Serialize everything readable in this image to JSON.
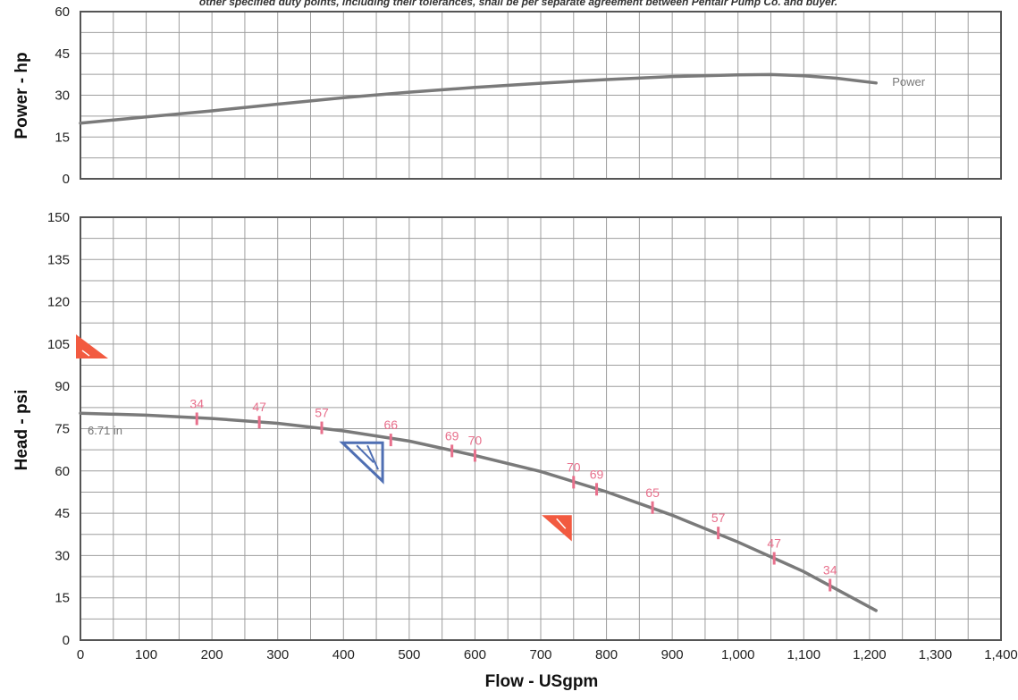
{
  "header_note": "other specified duty points, including their tolerances, shall be per separate agreement between Pentair Pump Co. and buyer.",
  "chart_data": [
    {
      "type": "line",
      "xlabel": "",
      "ylabel": "Power - hp",
      "xlim": [
        0,
        1400
      ],
      "ylim": [
        0,
        60
      ],
      "yticks": [
        0,
        15,
        30,
        45,
        60
      ],
      "grid": true,
      "series": [
        {
          "name": "Power",
          "color": "#7a7a7a",
          "points": [
            [
              0,
              20
            ],
            [
              100,
              22.2
            ],
            [
              200,
              24.4
            ],
            [
              300,
              26.8
            ],
            [
              400,
              29.1
            ],
            [
              500,
              31.1
            ],
            [
              600,
              32.8
            ],
            [
              700,
              34.3
            ],
            [
              800,
              35.6
            ],
            [
              900,
              36.7
            ],
            [
              1000,
              37.3
            ],
            [
              1050,
              37.4
            ],
            [
              1100,
              37.0
            ],
            [
              1150,
              36.1
            ],
            [
              1210,
              34.4
            ]
          ]
        }
      ]
    },
    {
      "type": "line",
      "xlabel": "Flow - USgpm",
      "ylabel": "Head - psi",
      "xlim": [
        0,
        1400
      ],
      "ylim": [
        0,
        150
      ],
      "yticks": [
        0,
        15,
        30,
        45,
        60,
        75,
        90,
        105,
        120,
        135,
        150
      ],
      "xticks": [
        "0",
        "100",
        "200",
        "300",
        "400",
        "500",
        "600",
        "700",
        "800",
        "900",
        "1,000",
        "1,100",
        "1,200",
        "1,300",
        "1,400"
      ],
      "grid": true,
      "series": [
        {
          "name": "6.71 in",
          "color": "#7a7a7a",
          "points": [
            [
              0,
              80.5
            ],
            [
              100,
              79.8
            ],
            [
              200,
              78.6
            ],
            [
              300,
              76.9
            ],
            [
              400,
              74.2
            ],
            [
              500,
              70.6
            ],
            [
              600,
              65.5
            ],
            [
              700,
              59.8
            ],
            [
              800,
              52.6
            ],
            [
              900,
              44.3
            ],
            [
              1000,
              34.8
            ],
            [
              1100,
              24.3
            ],
            [
              1210,
              10.5
            ]
          ]
        }
      ],
      "efficiency_markers": [
        {
          "x": 177,
          "y": 78.5,
          "label": "34"
        },
        {
          "x": 272,
          "y": 77.3,
          "label": "47"
        },
        {
          "x": 367,
          "y": 75.3,
          "label": "57"
        },
        {
          "x": 472,
          "y": 71.0,
          "label": "66"
        },
        {
          "x": 565,
          "y": 67.1,
          "label": "69"
        },
        {
          "x": 600,
          "y": 65.5,
          "label": "70"
        },
        {
          "x": 750,
          "y": 56.0,
          "label": "70"
        },
        {
          "x": 785,
          "y": 53.5,
          "label": "69"
        },
        {
          "x": 870,
          "y": 47.0,
          "label": "65"
        },
        {
          "x": 970,
          "y": 38.0,
          "label": "57"
        },
        {
          "x": 1055,
          "y": 29.0,
          "label": "47"
        },
        {
          "x": 1140,
          "y": 19.5,
          "label": "34"
        }
      ],
      "tolerance_markers": [
        {
          "kind": "shutoff",
          "color": "#f25a40",
          "x": 0,
          "y": 104
        },
        {
          "kind": "duty",
          "color": "#4f6fb3",
          "x": 450,
          "y": 70
        },
        {
          "kind": "runout",
          "color": "#f25a40",
          "x": 735,
          "y": 44
        }
      ],
      "efficiency_color": "#e8708c"
    }
  ]
}
